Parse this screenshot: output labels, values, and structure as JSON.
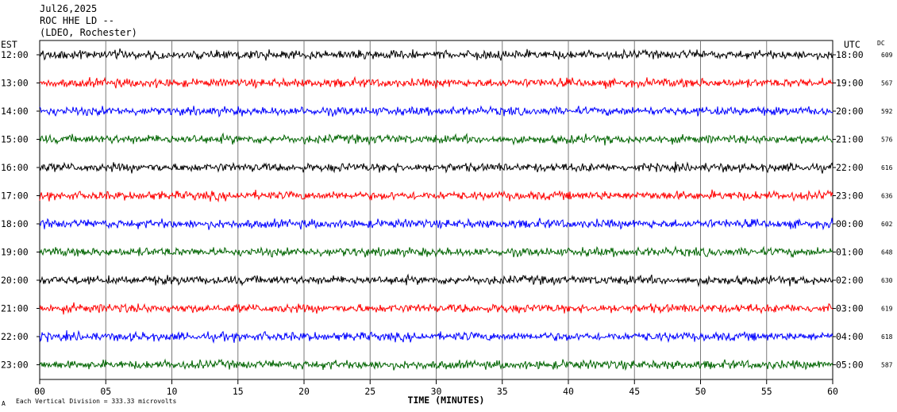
{
  "header": {
    "date": "Jul26,2025",
    "station": "ROC HHE LD --",
    "network": "(LDEO, Rochester)"
  },
  "left_zone_label": "EST",
  "right_zone_label": "UTC",
  "dc_header": "DC",
  "chart_data": {
    "type": "line",
    "title": "",
    "xlabel": "TIME (MINUTES)",
    "ylabel": "",
    "xlim": [
      0,
      60
    ],
    "x_ticks": [
      "00",
      "05",
      "10",
      "15",
      "20",
      "25",
      "30",
      "35",
      "40",
      "45",
      "50",
      "55",
      "60"
    ],
    "vertical_grid": true,
    "colors": [
      "#000000",
      "#ff0000",
      "#0000ff",
      "#006400"
    ],
    "series": [
      {
        "est": "12:00",
        "utc": "18:00",
        "dc": "609",
        "color": "#000000"
      },
      {
        "est": "13:00",
        "utc": "19:00",
        "dc": "567",
        "color": "#ff0000"
      },
      {
        "est": "14:00",
        "utc": "20:00",
        "dc": "592",
        "color": "#0000ff"
      },
      {
        "est": "15:00",
        "utc": "21:00",
        "dc": "576",
        "color": "#006400"
      },
      {
        "est": "16:00",
        "utc": "22:00",
        "dc": "616",
        "color": "#000000"
      },
      {
        "est": "17:00",
        "utc": "23:00",
        "dc": "636",
        "color": "#ff0000"
      },
      {
        "est": "18:00",
        "utc": "00:00",
        "dc": "602",
        "color": "#0000ff"
      },
      {
        "est": "19:00",
        "utc": "01:00",
        "dc": "648",
        "color": "#006400"
      },
      {
        "est": "20:00",
        "utc": "02:00",
        "dc": "630",
        "color": "#000000"
      },
      {
        "est": "21:00",
        "utc": "03:00",
        "dc": "619",
        "color": "#ff0000"
      },
      {
        "est": "22:00",
        "utc": "04:00",
        "dc": "618",
        "color": "#0000ff"
      },
      {
        "est": "23:00",
        "utc": "05:00",
        "dc": "587",
        "color": "#006400"
      }
    ]
  },
  "footer": {
    "corner_mark": "A",
    "scale_note": "Each Vertical Division =  333.33 microvolts"
  }
}
